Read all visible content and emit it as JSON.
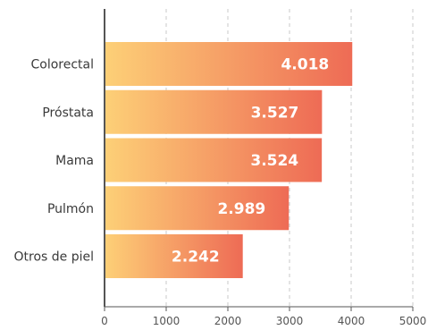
{
  "chart_data": {
    "type": "bar",
    "orientation": "horizontal",
    "categories": [
      "Colorectal",
      "Próstata",
      "Mama",
      "Pulmón",
      "Otros de piel"
    ],
    "values": [
      4018,
      3527,
      3524,
      2989,
      2242
    ],
    "value_labels": [
      "4.018",
      "3.527",
      "3.524",
      "2.989",
      "2.242"
    ],
    "xlim": [
      0,
      5000
    ],
    "x_ticks": [
      0,
      1000,
      2000,
      3000,
      4000,
      5000
    ],
    "x_tick_labels": [
      "0",
      "1000",
      "2000",
      "3000",
      "4000",
      "5000"
    ],
    "grid": true,
    "bar_gradient": [
      "#fdd077",
      "#ee6b55"
    ],
    "axis_color": "#555555",
    "grid_color": "#c8c8c8"
  }
}
